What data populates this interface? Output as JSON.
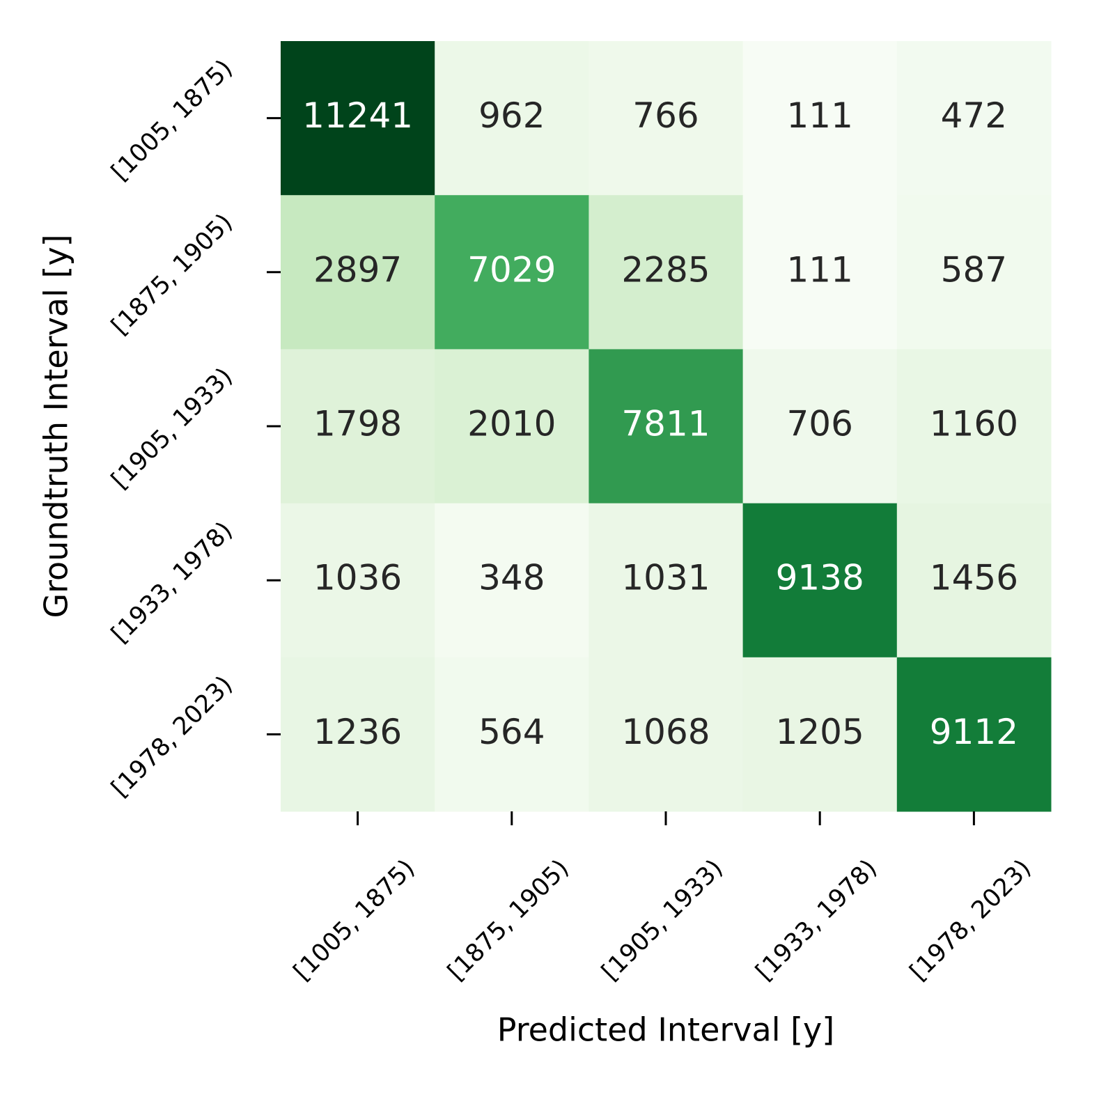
{
  "chart_data": {
    "type": "heatmap",
    "x_label": "Predicted Interval [y]",
    "y_label": "Groundtruth Interval [y]",
    "x_categories": [
      "[1005, 1875)",
      "[1875, 1905)",
      "[1905, 1933)",
      "[1933, 1978)",
      "[1978, 2023)"
    ],
    "y_categories": [
      "[1005, 1875)",
      "[1875, 1905)",
      "[1905, 1933)",
      "[1933, 1978)",
      "[1978, 2023)"
    ],
    "z": [
      [
        11241,
        962,
        766,
        111,
        472
      ],
      [
        2897,
        7029,
        2285,
        111,
        587
      ],
      [
        1798,
        2010,
        7811,
        706,
        1160
      ],
      [
        1036,
        348,
        1031,
        9138,
        1456
      ],
      [
        1236,
        564,
        1068,
        1205,
        9112
      ]
    ],
    "colormap": "Greens"
  }
}
